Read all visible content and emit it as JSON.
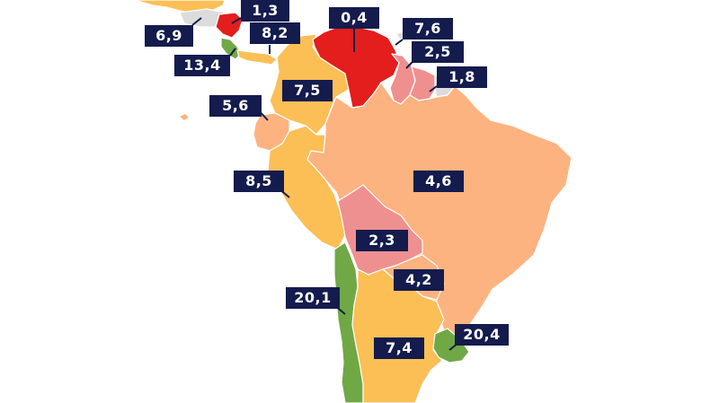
{
  "colors": {
    "red": "#e41d1d",
    "pink": "#ef9090",
    "peach": "#fdb37f",
    "yellow": "#fbbf56",
    "green": "#70a845",
    "grey": "#dcdcdc",
    "label_bg": "#141b4d"
  },
  "labels": {
    "honduras": "1,3",
    "guatemala": "6,9",
    "costa_rica": "13,4",
    "panama": "8,2",
    "venezuela": "0,4",
    "guyana": "7,6",
    "suriname": "2,5",
    "french_guiana": "1,8",
    "colombia": "7,5",
    "ecuador": "5,6",
    "peru": "8,5",
    "brazil": "4,6",
    "bolivia": "2,3",
    "paraguay": "4,2",
    "chile": "20,1",
    "uruguay": "20,4",
    "argentina": "7,4"
  }
}
